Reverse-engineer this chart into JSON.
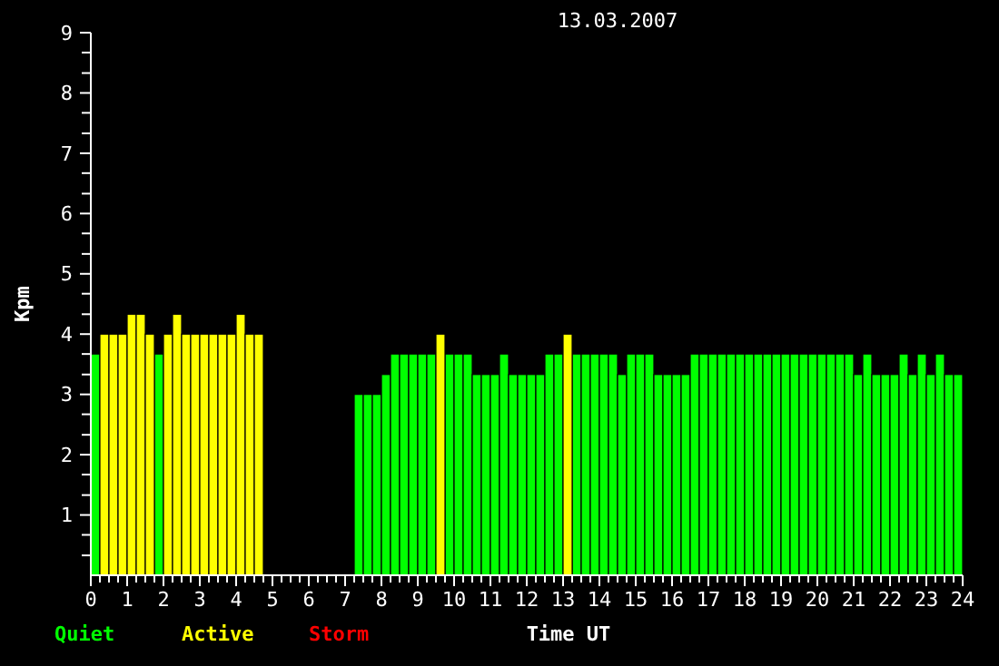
{
  "chart_data": {
    "type": "bar",
    "title": "13.03.2007",
    "xlabel": "Time UT",
    "ylabel": "Kpm",
    "legend": "bottom left",
    "grid": false,
    "x": [
      0.125,
      0.375,
      0.625,
      0.875,
      1.125,
      1.375,
      1.625,
      1.875,
      2.125,
      2.375,
      2.625,
      2.875,
      3.125,
      3.375,
      3.625,
      3.875,
      4.125,
      4.375,
      4.625,
      4.875,
      5.125,
      5.375,
      5.625,
      5.875,
      6.125,
      6.375,
      6.625,
      6.875,
      7.125,
      7.375,
      7.625,
      7.875,
      8.125,
      8.375,
      8.625,
      8.875,
      9.125,
      9.375,
      9.625,
      9.875,
      10.125,
      10.375,
      10.625,
      10.875,
      11.125,
      11.375,
      11.625,
      11.875,
      12.125,
      12.375,
      12.625,
      12.875,
      13.125,
      13.375,
      13.625,
      13.875,
      14.125,
      14.375,
      14.625,
      14.875,
      15.125,
      15.375,
      15.625,
      15.875,
      16.125,
      16.375,
      16.625,
      16.875,
      17.125,
      17.375,
      17.625,
      17.875,
      18.125,
      18.375,
      18.625,
      18.875,
      19.125,
      19.375,
      19.625,
      19.875,
      20.125,
      20.375,
      20.625,
      20.875,
      21.125,
      21.375,
      21.625,
      21.875,
      22.125,
      22.375,
      22.625,
      22.875,
      23.125,
      23.375,
      23.625,
      23.875
    ],
    "series": [
      {
        "name": "Quiet",
        "color": "#00ff00",
        "values": [
          3.67,
          null,
          null,
          null,
          null,
          null,
          null,
          3.67,
          null,
          null,
          null,
          null,
          null,
          null,
          null,
          null,
          null,
          null,
          null,
          null,
          null,
          null,
          null,
          null,
          null,
          null,
          null,
          null,
          null,
          3,
          3,
          3,
          3.33,
          3.67,
          3.67,
          3.67,
          3.67,
          3.67,
          null,
          3.67,
          3.67,
          3.67,
          3.33,
          3.33,
          3.33,
          3.67,
          3.33,
          3.33,
          3.33,
          3.33,
          3.67,
          3.67,
          null,
          3.67,
          3.67,
          3.67,
          3.67,
          3.67,
          3.33,
          3.67,
          3.67,
          3.67,
          3.33,
          3.33,
          3.33,
          3.33,
          3.67,
          3.67,
          3.67,
          3.67,
          3.67,
          3.67,
          3.67,
          3.67,
          3.67,
          3.67,
          3.67,
          3.67,
          3.67,
          3.67,
          3.67,
          3.67,
          3.67,
          3.67,
          3.33,
          3.67,
          3.33,
          3.33,
          3.33,
          3.67,
          3.33,
          3.67,
          3.33,
          3.67,
          3.33,
          3.33
        ]
      },
      {
        "name": "Active",
        "color": "#ffff00",
        "values": [
          null,
          4,
          4,
          4,
          4.33,
          4.33,
          4,
          null,
          4,
          4.33,
          4,
          4,
          4,
          4,
          4,
          4,
          4.33,
          4,
          4,
          null,
          null,
          null,
          null,
          null,
          null,
          null,
          null,
          null,
          null,
          null,
          null,
          null,
          null,
          null,
          null,
          null,
          null,
          null,
          4,
          null,
          null,
          null,
          null,
          null,
          null,
          null,
          null,
          null,
          null,
          null,
          null,
          null,
          4,
          null,
          null,
          null,
          null,
          null,
          null,
          null,
          null,
          null,
          null,
          null,
          null,
          null,
          null,
          null,
          null,
          null,
          null,
          null,
          null,
          null,
          null,
          null,
          null,
          null,
          null,
          null,
          null,
          null,
          null,
          null,
          null,
          null,
          null,
          null,
          null,
          null,
          null,
          null,
          null,
          null,
          null,
          null
        ]
      },
      {
        "name": "Storm",
        "color": "#ff0000",
        "values": [
          null,
          null,
          null,
          null,
          null,
          null,
          null,
          null,
          null,
          null,
          null,
          null,
          null,
          null,
          null,
          null,
          null,
          null,
          null,
          null,
          null,
          null,
          null,
          null,
          null,
          null,
          null,
          null,
          null,
          null,
          null,
          null,
          null,
          null,
          null,
          null,
          null,
          null,
          null,
          null,
          null,
          null,
          null,
          null,
          null,
          null,
          null,
          null,
          null,
          null,
          null,
          null,
          null,
          null,
          null,
          null,
          null,
          null,
          null,
          null,
          null,
          null,
          null,
          null,
          null,
          null,
          null,
          null,
          null,
          null,
          null,
          null,
          null,
          null,
          null,
          null,
          null,
          null,
          null,
          null,
          null,
          null,
          null,
          null,
          null,
          null,
          null,
          null,
          null,
          null,
          null,
          null,
          null,
          null,
          null,
          null
        ]
      }
    ],
    "xlim": [
      0,
      24
    ],
    "xticks": [
      0,
      {
        "value": 0.25,
        "label": null
      },
      {
        "value": 0.5,
        "label": null
      },
      {
        "value": 0.75,
        "label": null
      },
      1,
      {
        "value": 1.25,
        "label": null
      },
      {
        "value": 1.5,
        "label": null
      },
      {
        "value": 1.75,
        "label": null
      },
      2,
      {
        "value": 2.25,
        "label": null
      },
      {
        "value": 2.5,
        "label": null
      },
      {
        "value": 2.75,
        "label": null
      },
      3,
      {
        "value": 3.25,
        "label": null
      },
      {
        "value": 3.5,
        "label": null
      },
      {
        "value": 3.75,
        "label": null
      },
      4,
      {
        "value": 4.25,
        "label": null
      },
      {
        "value": 4.5,
        "label": null
      },
      {
        "value": 4.75,
        "label": null
      },
      5,
      {
        "value": 5.25,
        "label": null
      },
      {
        "value": 5.5,
        "label": null
      },
      {
        "value": 5.75,
        "label": null
      },
      6,
      {
        "value": 6.25,
        "label": null
      },
      {
        "value": 6.5,
        "label": null
      },
      {
        "value": 6.75,
        "label": null
      },
      7,
      {
        "value": 7.25,
        "label": null
      },
      {
        "value": 7.5,
        "label": null
      },
      {
        "value": 7.75,
        "label": null
      },
      8,
      {
        "value": 8.25,
        "label": null
      },
      {
        "value": 8.5,
        "label": null
      },
      {
        "value": 8.75,
        "label": null
      },
      9,
      {
        "value": 9.25,
        "label": null
      },
      {
        "value": 9.5,
        "label": null
      },
      {
        "value": 9.75,
        "label": null
      },
      10,
      {
        "value": 10.25,
        "label": null
      },
      {
        "value": 10.5,
        "label": null
      },
      {
        "value": 10.75,
        "label": null
      },
      11,
      {
        "value": 11.25,
        "label": null
      },
      {
        "value": 11.5,
        "label": null
      },
      {
        "value": 11.75,
        "label": null
      },
      12,
      {
        "value": 12.25,
        "label": null
      },
      {
        "value": 12.5,
        "label": null
      },
      {
        "value": 12.75,
        "label": null
      },
      13,
      {
        "value": 13.25,
        "label": null
      },
      {
        "value": 13.5,
        "label": null
      },
      {
        "value": 13.75,
        "label": null
      },
      14,
      {
        "value": 14.25,
        "label": null
      },
      {
        "value": 14.5,
        "label": null
      },
      {
        "value": 14.75,
        "label": null
      },
      15,
      {
        "value": 15.25,
        "label": null
      },
      {
        "value": 15.5,
        "label": null
      },
      {
        "value": 15.75,
        "label": null
      },
      16,
      {
        "value": 16.25,
        "label": null
      },
      {
        "value": 16.5,
        "label": null
      },
      {
        "value": 16.75,
        "label": null
      },
      17,
      {
        "value": 17.25,
        "label": null
      },
      {
        "value": 17.5,
        "label": null
      },
      {
        "value": 17.75,
        "label": null
      },
      18,
      {
        "value": 18.25,
        "label": null
      },
      {
        "value": 18.5,
        "label": null
      },
      {
        "value": 18.75,
        "label": null
      },
      19,
      {
        "value": 19.25,
        "label": null
      },
      {
        "value": 19.5,
        "label": null
      },
      {
        "value": 19.75,
        "label": null
      },
      20,
      {
        "value": 20.25,
        "label": null
      },
      {
        "value": 20.5,
        "label": null
      },
      {
        "value": 20.75,
        "label": null
      },
      21,
      {
        "value": 21.25,
        "label": null
      },
      {
        "value": 21.5,
        "label": null
      },
      {
        "value": 21.75,
        "label": null
      },
      22,
      {
        "value": 22.25,
        "label": null
      },
      {
        "value": 22.5,
        "label": null
      },
      {
        "value": 22.75,
        "label": null
      },
      23,
      {
        "value": 23.25,
        "label": null
      },
      {
        "value": 23.5,
        "label": null
      },
      {
        "value": 23.75,
        "label": null
      },
      24
    ],
    "ylim": [
      0,
      9
    ],
    "yticks": [
      {
        "value": 0.33,
        "label": null
      },
      {
        "value": 0.67,
        "label": null
      },
      1,
      {
        "value": 1.33,
        "label": null
      },
      {
        "value": 1.67,
        "label": null
      },
      2,
      {
        "value": 2.33,
        "label": null
      },
      {
        "value": 2.67,
        "label": null
      },
      3,
      {
        "value": 3.33,
        "label": null
      },
      {
        "value": 3.67,
        "label": null
      },
      4,
      {
        "value": 4.33,
        "label": null
      },
      {
        "value": 4.67,
        "label": null
      },
      5,
      {
        "value": 5.33,
        "label": null
      },
      {
        "value": 5.67,
        "label": null
      },
      6,
      {
        "value": 6.33,
        "label": null
      },
      {
        "value": 6.67,
        "label": null
      },
      7,
      {
        "value": 7.33,
        "label": null
      },
      {
        "value": 7.67,
        "label": null
      },
      8,
      {
        "value": 8.33,
        "label": null
      },
      {
        "value": 8.67,
        "label": null
      },
      9
    ]
  }
}
